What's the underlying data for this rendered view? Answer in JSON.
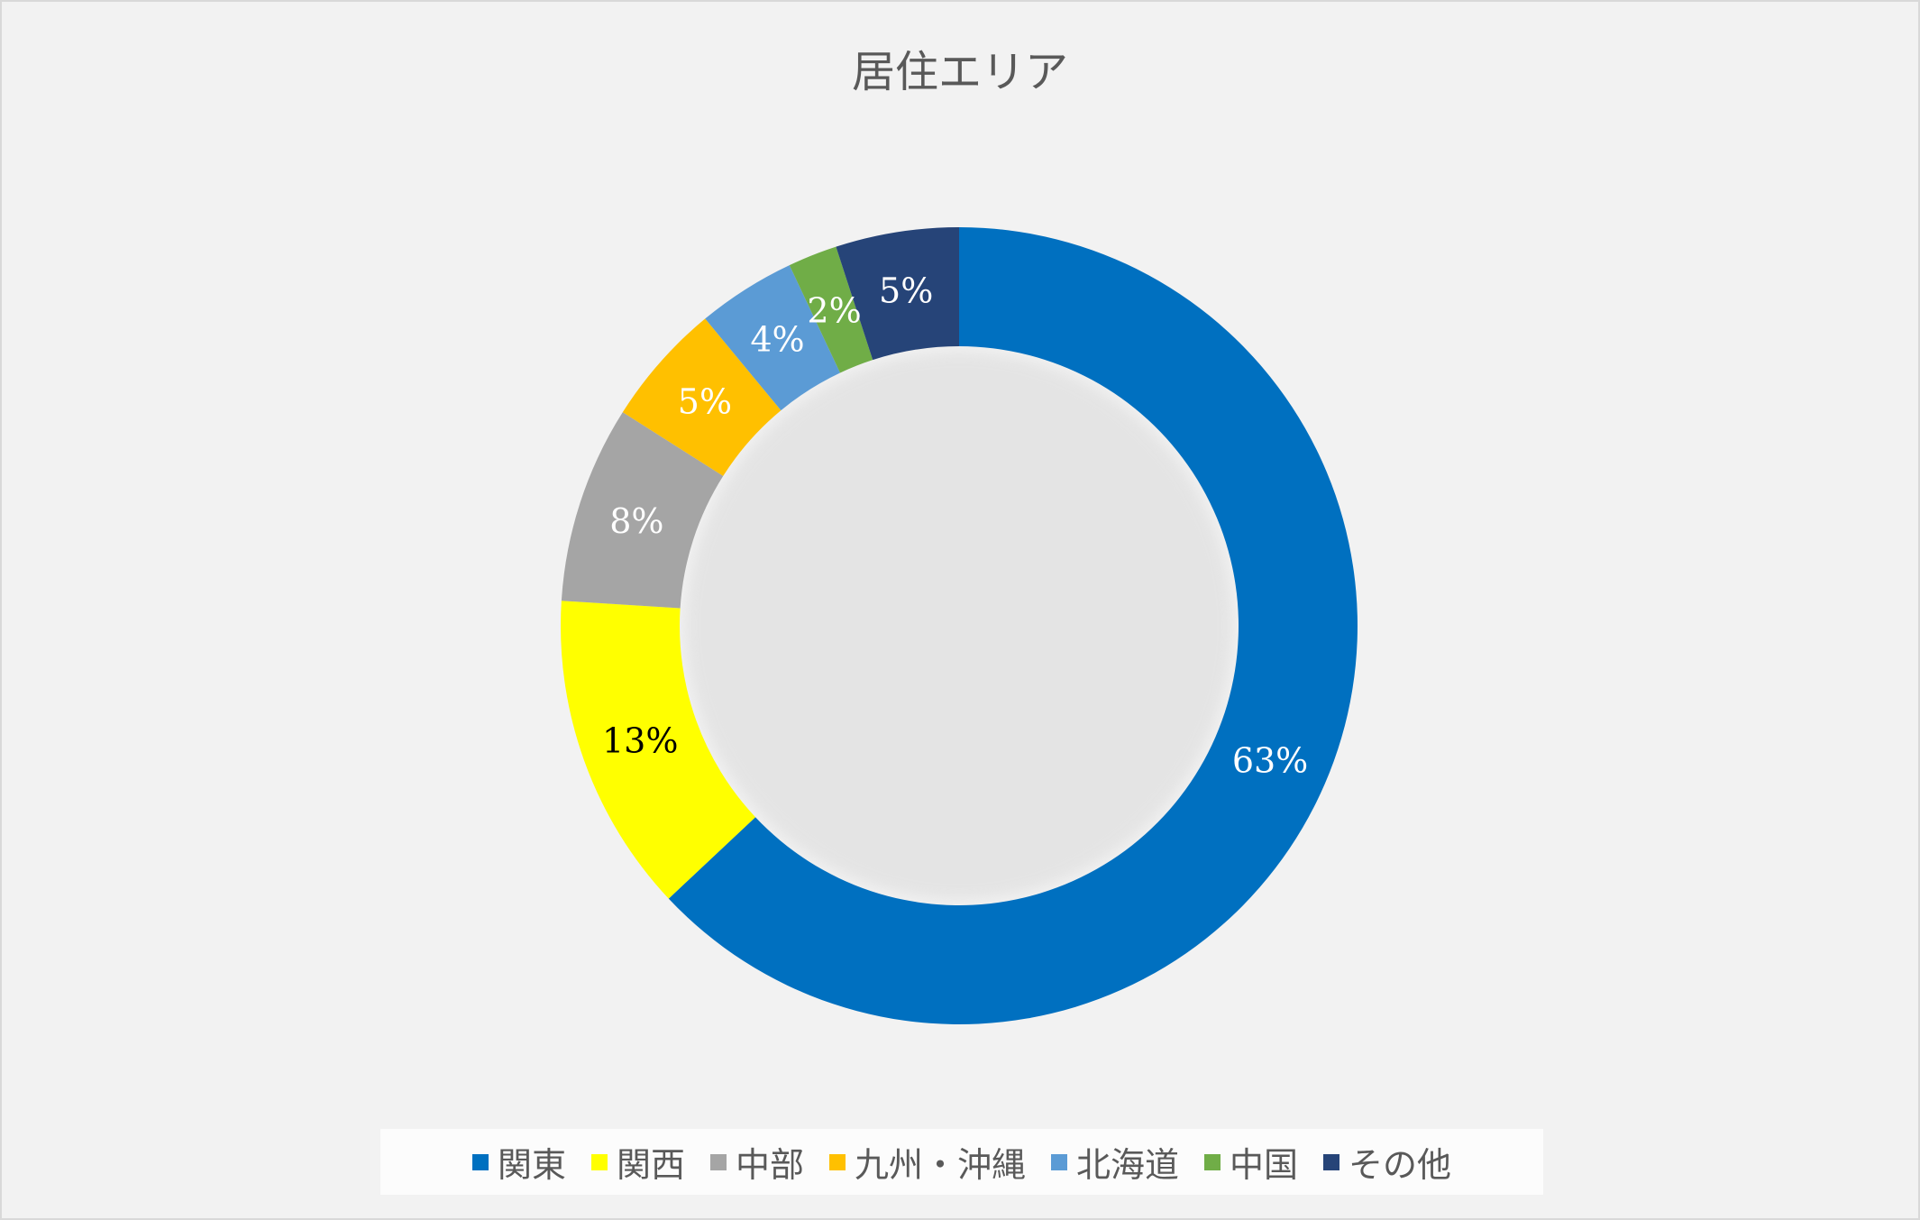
{
  "chart_data": {
    "type": "pie",
    "variant": "donut",
    "title": "居住エリア",
    "categories": [
      "関東",
      "関西",
      "中部",
      "九州・沖縄",
      "北海道",
      "中国",
      "その他"
    ],
    "values": [
      63,
      13,
      8,
      5,
      4,
      2,
      5
    ],
    "data_labels": [
      "63%",
      "13%",
      "8%",
      "5%",
      "4%",
      "2%",
      "5%"
    ],
    "colors": [
      "#0070c0",
      "#ffff00",
      "#a5a5a5",
      "#ffc000",
      "#5b9bd5",
      "#70ad47",
      "#264478"
    ],
    "label_colors": [
      "#ffffff",
      "#000000",
      "#ffffff",
      "#ffffff",
      "#ffffff",
      "#ffffff",
      "#ffffff"
    ],
    "unit": "%",
    "legend_position": "bottom",
    "direction": "clockwise from top"
  }
}
